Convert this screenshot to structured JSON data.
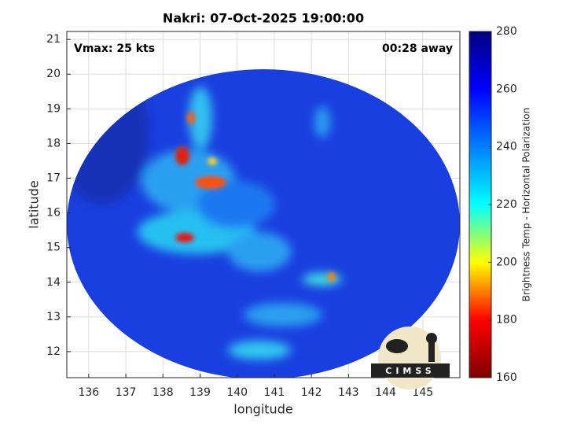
{
  "chart_data": {
    "type": "image",
    "title": "Nakri: 07-Oct-2025 19:00:00",
    "xlabel": "longitude",
    "ylabel": "latitude",
    "annotations": [
      "Vmax: 25 kts",
      "00:28 away"
    ],
    "logo": "CIMSS",
    "xlim": [
      135.41,
      146
    ],
    "xticks": [
      136,
      137,
      138,
      139,
      140,
      141,
      142,
      143,
      144,
      145
    ],
    "ylim": [
      11.25,
      21.23
    ],
    "yticks": [
      12,
      13,
      14,
      15,
      16,
      17,
      18,
      19,
      20,
      21
    ],
    "grid": true,
    "colorbar": {
      "label": "Brightness Temp - Horizontal Polarization",
      "lim": [
        160,
        280
      ],
      "ticks": [
        160,
        180,
        200,
        220,
        240,
        260,
        280
      ],
      "colormap": [
        "#7f0000",
        "#ff0000",
        "#ffff00",
        "#00ffff",
        "#0080ff",
        "#0000ff",
        "#00007f"
      ]
    }
  }
}
